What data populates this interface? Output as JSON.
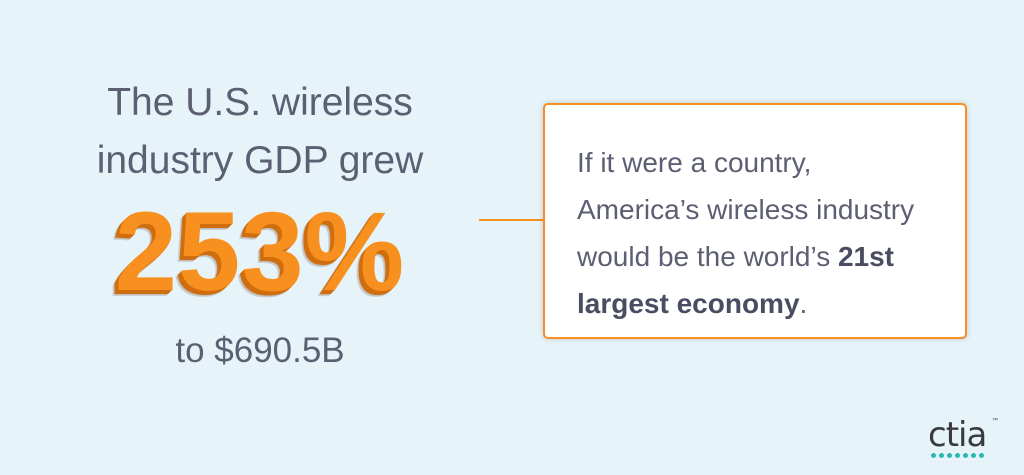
{
  "headline": {
    "line1": "The U.S. wireless",
    "line2": "industry GDP grew"
  },
  "big_number": "253%",
  "subline": "to $690.5B",
  "callout": {
    "line1": "If it were a country,",
    "line2": "America’s wireless industry",
    "line3_plain": "would be the world’s ",
    "line3_strong": "21st",
    "line4_strong": "largest economy",
    "line4_end": "."
  },
  "logo": {
    "text": "ctia",
    "tm": "™"
  },
  "colors": {
    "background": "#e6f4fa",
    "accent_orange": "#f7901e",
    "text_gray": "#5c5e72",
    "logo_teal": "#2bb7b4"
  }
}
